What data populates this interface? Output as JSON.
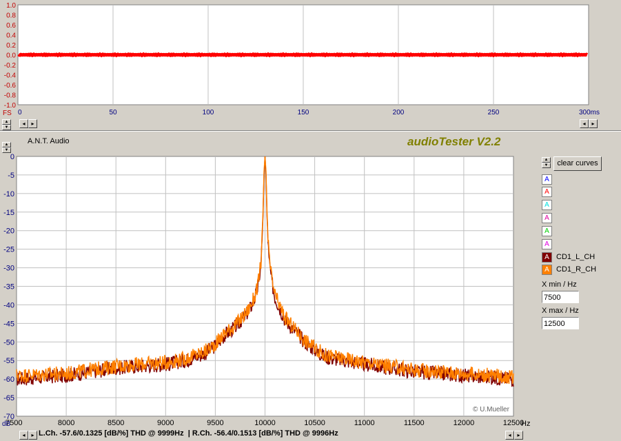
{
  "top_scope": {
    "y_ticks": [
      "1.0",
      "0.8",
      "0.6",
      "0.4",
      "0.2",
      "0.0",
      "-0.2",
      "-0.4",
      "-0.6",
      "-0.8",
      "-1.0"
    ],
    "y_unit": "FS",
    "x_ticks": [
      "0",
      "50",
      "100",
      "150",
      "200",
      "250",
      "300ms"
    ]
  },
  "header": {
    "device": "A.N.T. Audio",
    "app_title": "audioTester V2.2"
  },
  "side_panel": {
    "clear_label": "clear curves",
    "curve_button_glyph": "A",
    "curves": [
      {
        "label": "",
        "color": "#0000ff"
      },
      {
        "label": "",
        "color": "#ff0000"
      },
      {
        "label": "",
        "color": "#00e0e0"
      },
      {
        "label": "",
        "color": "#e000a0"
      },
      {
        "label": "",
        "color": "#00d000"
      },
      {
        "label": "",
        "color": "#e000e0"
      },
      {
        "label": "CD1_L_CH",
        "color": "#800000"
      },
      {
        "label": "CD1_R_CH",
        "color": "#ff8000"
      }
    ],
    "xmin_label": "X min / Hz",
    "xmin_value": "7500",
    "xmax_label": "X max / Hz",
    "xmax_value": "12500"
  },
  "spectrum": {
    "y_unit": "dB",
    "x_unit": "Hz",
    "copyright": "© U.Mueller"
  },
  "status": {
    "text": "L.Ch. -57.6/0.1325 [dB/%] THD @ 9999Hz  | R.Ch. -56.4/0.1513 [dB/%] THD @ 9996Hz"
  },
  "chart_data": [
    {
      "type": "line",
      "x_range_ms": [
        0,
        300
      ],
      "ylim": [
        -1.0,
        1.0
      ],
      "x_ticks": [
        0,
        50,
        100,
        150,
        200,
        250,
        300
      ],
      "y_ticks": [
        1.0,
        0.8,
        0.6,
        0.4,
        0.2,
        0.0,
        -0.2,
        -0.4,
        -0.6,
        -0.8,
        -1.0
      ],
      "series": [
        {
          "color": "#ff0000",
          "signal_amplitude": 0.01
        }
      ],
      "grid": true
    },
    {
      "type": "line",
      "xlim": [
        7500,
        12500
      ],
      "ylim": [
        -70,
        0
      ],
      "x_ticks": [
        7500,
        8000,
        8500,
        9000,
        9500,
        10000,
        10500,
        11000,
        11500,
        12000,
        12500
      ],
      "y_ticks": [
        0,
        -5,
        -10,
        -15,
        -20,
        -25,
        -30,
        -35,
        -40,
        -45,
        -50,
        -55,
        -60,
        -65,
        -70
      ],
      "grid": true,
      "series": [
        {
          "name": "CD1_L_CH",
          "color": "#800000",
          "x": [
            7500,
            8000,
            8500,
            9000,
            9200,
            9400,
            9500,
            9600,
            9700,
            9800,
            9850,
            9900,
            9930,
            9960,
            9980,
            9990,
            10000,
            10010,
            10020,
            10040,
            10070,
            10100,
            10150,
            10200,
            10300,
            10400,
            10500,
            10600,
            10800,
            11000,
            11500,
            12000,
            12500
          ],
          "y": [
            -60,
            -59,
            -57,
            -56,
            -55,
            -53,
            -51,
            -48,
            -46,
            -43,
            -41,
            -38,
            -35,
            -29,
            -16,
            -5,
            0,
            -5,
            -16,
            -28,
            -34,
            -38,
            -41,
            -44,
            -47,
            -50,
            -52,
            -54,
            -55,
            -56,
            -58,
            -59,
            -60
          ]
        },
        {
          "name": "CD1_R_CH",
          "color": "#ff8000",
          "x": [
            7500,
            8000,
            8500,
            9000,
            9200,
            9400,
            9500,
            9600,
            9700,
            9800,
            9850,
            9900,
            9930,
            9960,
            9980,
            9990,
            10000,
            10010,
            10020,
            10040,
            10070,
            10100,
            10150,
            10200,
            10300,
            10400,
            10500,
            10600,
            10800,
            11000,
            11500,
            12000,
            12500
          ],
          "y": [
            -59,
            -58.5,
            -56.5,
            -55.5,
            -54.5,
            -52.5,
            -50.5,
            -47.5,
            -45.5,
            -42.5,
            -40.5,
            -37.5,
            -34.5,
            -28.5,
            -15,
            -4,
            0,
            -4,
            -15,
            -27,
            -33.5,
            -37.5,
            -40.5,
            -43.5,
            -46.5,
            -49.5,
            -51.5,
            -53.5,
            -54.5,
            -55.5,
            -57.5,
            -58.5,
            -59.5
          ]
        }
      ]
    }
  ]
}
